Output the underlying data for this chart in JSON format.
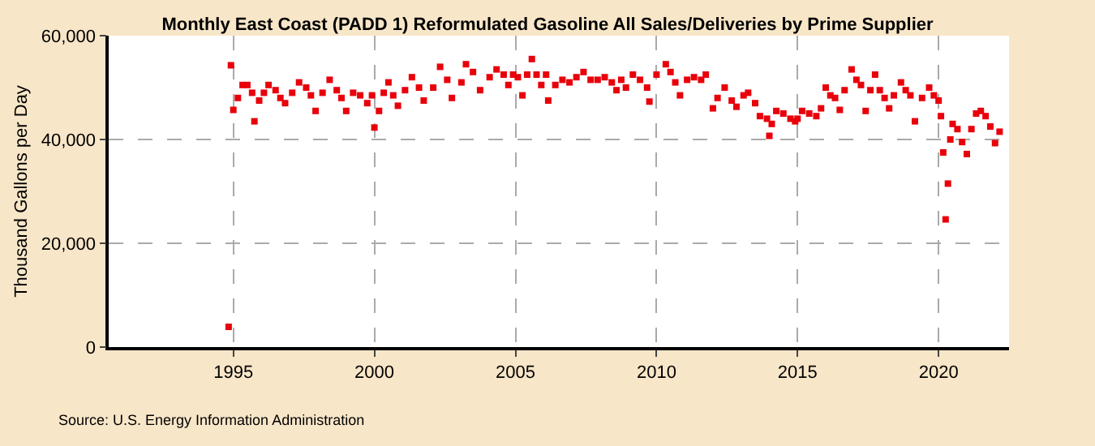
{
  "chart_data": {
    "type": "scatter",
    "title": "Monthly East Coast (PADD 1) Reformulated Gasoline All Sales/Deliveries by Prime Supplier",
    "ylabel": "Thousand Gallons per Day",
    "annotations": [
      "Source: U.S. Energy Information Administration"
    ],
    "x": [
      "1994-11",
      "1994-12",
      "1995-01",
      "1995-03",
      "1995-05",
      "1995-07",
      "1995-09",
      "1995-10",
      "1995-12",
      "1996-02",
      "1996-04",
      "1996-07",
      "1996-09",
      "1996-11",
      "1997-02",
      "1997-05",
      "1997-08",
      "1997-10",
      "1997-12",
      "1998-03",
      "1998-06",
      "1998-09",
      "1998-11",
      "1999-01",
      "1999-04",
      "1999-07",
      "1999-10",
      "1999-12",
      "2000-01",
      "2000-03",
      "2000-05",
      "2000-07",
      "2000-09",
      "2000-11",
      "2001-02",
      "2001-05",
      "2001-08",
      "2001-10",
      "2002-02",
      "2002-05",
      "2002-08",
      "2002-10",
      "2003-02",
      "2003-04",
      "2003-07",
      "2003-10",
      "2004-02",
      "2004-05",
      "2004-08",
      "2004-10",
      "2004-12",
      "2005-02",
      "2005-04",
      "2005-06",
      "2005-08",
      "2005-10",
      "2005-12",
      "2006-02",
      "2006-03",
      "2006-06",
      "2006-09",
      "2006-12",
      "2007-03",
      "2007-06",
      "2007-09",
      "2007-12",
      "2008-03",
      "2008-06",
      "2008-08",
      "2008-10",
      "2008-12",
      "2009-03",
      "2009-06",
      "2009-09",
      "2009-10",
      "2010-01",
      "2010-05",
      "2010-07",
      "2010-09",
      "2010-11",
      "2011-02",
      "2011-05",
      "2011-08",
      "2011-10",
      "2012-01",
      "2012-03",
      "2012-06",
      "2012-09",
      "2012-11",
      "2013-02",
      "2013-04",
      "2013-07",
      "2013-09",
      "2013-12",
      "2014-01",
      "2014-02",
      "2014-04",
      "2014-07",
      "2014-10",
      "2014-12",
      "2015-01",
      "2015-03",
      "2015-06",
      "2015-09",
      "2015-11",
      "2016-01",
      "2016-03",
      "2016-05",
      "2016-07",
      "2016-09",
      "2016-12",
      "2017-02",
      "2017-04",
      "2017-06",
      "2017-08",
      "2017-10",
      "2017-12",
      "2018-02",
      "2018-04",
      "2018-06",
      "2018-09",
      "2018-11",
      "2019-01",
      "2019-03",
      "2019-06",
      "2019-09",
      "2019-11",
      "2020-01",
      "2020-02",
      "2020-03",
      "2020-04",
      "2020-05",
      "2020-06",
      "2020-07",
      "2020-09",
      "2020-11",
      "2021-01",
      "2021-03",
      "2021-05",
      "2021-07",
      "2021-09",
      "2021-11",
      "2022-01",
      "2022-03"
    ],
    "series": [
      {
        "color": "#e8000b",
        "values": [
          3900,
          54300,
          45700,
          48000,
          50500,
          50500,
          49000,
          43500,
          47500,
          49000,
          50500,
          49500,
          48000,
          47000,
          49000,
          51000,
          50000,
          48500,
          45500,
          49000,
          51500,
          49500,
          48000,
          45500,
          49000,
          48500,
          47000,
          48500,
          42300,
          45500,
          49000,
          51000,
          48500,
          46500,
          49500,
          52000,
          50000,
          47500,
          50000,
          54000,
          51500,
          48000,
          51000,
          54500,
          53000,
          49500,
          52000,
          53500,
          52500,
          50500,
          52500,
          52000,
          48500,
          52500,
          55500,
          52500,
          50500,
          52500,
          47500,
          50500,
          51500,
          51000,
          52000,
          53000,
          51500,
          51500,
          52000,
          51000,
          49500,
          51500,
          50000,
          52500,
          51500,
          50000,
          47300,
          52500,
          54500,
          53000,
          51000,
          48500,
          51500,
          52000,
          51500,
          52500,
          46000,
          48000,
          50000,
          47500,
          46300,
          48500,
          49000,
          47000,
          44500,
          44000,
          40700,
          43000,
          45500,
          45000,
          44000,
          43500,
          44000,
          45500,
          45000,
          44500,
          46000,
          50000,
          48500,
          48000,
          45700,
          49500,
          53500,
          51500,
          50500,
          45500,
          49500,
          52500,
          49500,
          48000,
          46000,
          48500,
          51000,
          49500,
          48500,
          43500,
          48000,
          50000,
          48500,
          47500,
          44500,
          37500,
          24600,
          31500,
          40000,
          43000,
          42000,
          39500,
          37200,
          42000,
          45000,
          45500,
          44500,
          42500,
          39300,
          41500
        ]
      }
    ],
    "xlim": [
      "1990-08",
      "2022-07"
    ],
    "xticks": [
      "1995",
      "2000",
      "2005",
      "2010",
      "2015",
      "2020"
    ],
    "ylim": [
      0,
      60000
    ],
    "yticks": [
      {
        "value": 0,
        "label": "0"
      },
      {
        "value": 20000,
        "label": "20,000"
      },
      {
        "value": 40000,
        "label": "40,000"
      },
      {
        "value": 60000,
        "label": "60,000"
      }
    ],
    "grid": true,
    "marker": "square"
  }
}
